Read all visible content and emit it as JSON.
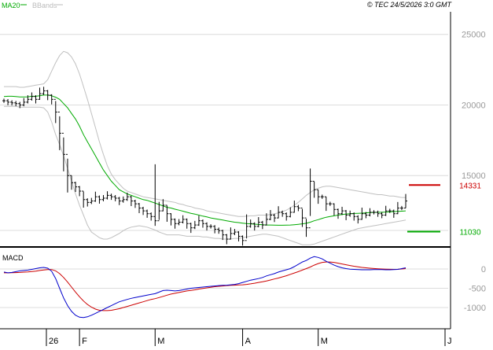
{
  "header": {
    "legend": [
      {
        "label": "MA20",
        "color": "#00aa00"
      },
      {
        "label": "BBands",
        "color": "#bbbbbb"
      }
    ],
    "copyright": "© TEC 24/5/2026 3:0 GMT"
  },
  "colors": {
    "price": "#000000",
    "ma20": "#00aa00",
    "bbands": "#c0c0c0",
    "grid": "#dcdcdc",
    "resistance": "#cc0000",
    "support": "#00aa00",
    "macd": "#0000cc",
    "signal": "#cc0000",
    "axis_text": "#999999",
    "frame": "#000000"
  },
  "price_panel": {
    "yticks": [
      {
        "label": "25000",
        "value": 25000
      },
      {
        "label": "20000",
        "value": 20000
      },
      {
        "label": "15000",
        "value": 15000
      }
    ],
    "ylim": [
      10000,
      26600
    ],
    "levels": [
      {
        "label": "14331",
        "value": 14331,
        "type": "resistance"
      },
      {
        "label": "11030",
        "value": 11030,
        "type": "support"
      }
    ]
  },
  "macd_panel": {
    "label": "MACD",
    "yticks": [
      {
        "label": "0",
        "value": 0
      },
      {
        "label": "-500",
        "value": -500
      },
      {
        "label": "-1000",
        "value": -1000
      }
    ],
    "ylim": [
      -1550,
      550
    ]
  },
  "x_axis": {
    "ticks": [
      {
        "label": "26",
        "index": 0
      },
      {
        "label": "F",
        "index": 19
      },
      {
        "label": "M",
        "index": 38
      },
      {
        "label": "A",
        "index": 60
      },
      {
        "label": "M",
        "index": 79
      },
      {
        "label": "J",
        "index": 101
      }
    ]
  },
  "chart_data": {
    "type": "candlestick",
    "index_count": 102,
    "closes": [
      20300,
      20200,
      20150,
      20100,
      20000,
      20200,
      20400,
      20600,
      20400,
      20800,
      21000,
      20700,
      20400,
      19500,
      18000,
      16500,
      15000,
      14500,
      14200,
      13900,
      13300,
      13100,
      13200,
      13500,
      13300,
      13400,
      13600,
      13500,
      13400,
      13200,
      13300,
      13500,
      13200,
      13000,
      12700,
      12500,
      12300,
      12100,
      11800,
      12500,
      12900,
      12300,
      11900,
      11600,
      11700,
      11900,
      11600,
      11300,
      11500,
      11800,
      11600,
      11400,
      11400,
      11200,
      11100,
      10800,
      10500,
      10900,
      11000,
      10700,
      10400,
      11400,
      11600,
      11400,
      11700,
      11500,
      11900,
      12200,
      12000,
      12400,
      12300,
      12100,
      12400,
      12800,
      12700,
      12000,
      11300,
      14600,
      14000,
      13500,
      13500,
      13000,
      13000,
      12600,
      12300,
      12500,
      12200,
      12300,
      12100,
      11900,
      12300,
      12200,
      12400,
      12400,
      12300,
      12200,
      12500,
      12500,
      12300,
      12700,
      12700,
      13200
    ],
    "ma20": [
      20600,
      20620,
      20620,
      20600,
      20570,
      20570,
      20580,
      20620,
      20620,
      20650,
      20700,
      20700,
      20650,
      20550,
      20400,
      20100,
      19800,
      19400,
      19000,
      18500,
      17900,
      17400,
      16900,
      16400,
      15900,
      15400,
      15000,
      14600,
      14300,
      14000,
      13850,
      13700,
      13600,
      13500,
      13400,
      13300,
      13250,
      13150,
      13050,
      12950,
      12850,
      12750,
      12700,
      12620,
      12550,
      12480,
      12400,
      12330,
      12270,
      12200,
      12130,
      12070,
      12000,
      11950,
      11900,
      11850,
      11800,
      11750,
      11700,
      11670,
      11630,
      11600,
      11580,
      11560,
      11540,
      11520,
      11500,
      11500,
      11490,
      11480,
      11480,
      11490,
      11500,
      11520,
      11550,
      11580,
      11620,
      11700,
      11800,
      11880,
      11970,
      12050,
      12100,
      12150,
      12200,
      12240,
      12280,
      12300,
      12320,
      12330,
      12340,
      12360,
      12380,
      12390,
      12400,
      12400,
      12420,
      12430,
      12450,
      12460,
      12480,
      12500
    ],
    "bb_upper": [
      21300,
      21300,
      21300,
      21300,
      21250,
      21250,
      21300,
      21350,
      21400,
      21450,
      21500,
      21800,
      22400,
      23000,
      23500,
      23800,
      23700,
      23400,
      22900,
      22200,
      21300,
      20400,
      19400,
      18400,
      17400,
      16500,
      15700,
      15100,
      14700,
      14400,
      14100,
      13900,
      13800,
      13700,
      13600,
      13500,
      13450,
      13400,
      13350,
      13300,
      13250,
      13200,
      13150,
      13100,
      13000,
      12950,
      12850,
      12800,
      12700,
      12650,
      12600,
      12500,
      12450,
      12400,
      12350,
      12300,
      12250,
      12200,
      12150,
      12100,
      12100,
      12120,
      12150,
      12150,
      12200,
      12200,
      12200,
      12250,
      12300,
      12350,
      12450,
      12550,
      12700,
      12900,
      13100,
      13350,
      13600,
      13800,
      14000,
      14100,
      14200,
      14250,
      14250,
      14200,
      14150,
      14100,
      14050,
      14000,
      13950,
      13900,
      13850,
      13800,
      13750,
      13700,
      13650,
      13650,
      13600,
      13550,
      13550,
      13500,
      13450,
      13450
    ],
    "bb_lower": [
      19900,
      19900,
      19900,
      19900,
      19850,
      19850,
      19850,
      19850,
      19850,
      19850,
      19800,
      19500,
      18800,
      17900,
      17200,
      16400,
      15500,
      14600,
      13700,
      12900,
      12200,
      11500,
      11000,
      10800,
      10600,
      10500,
      10500,
      10600,
      10750,
      10900,
      11100,
      11250,
      11350,
      11400,
      11450,
      11400,
      11350,
      11250,
      11150,
      11000,
      10900,
      10800,
      10800,
      10800,
      10800,
      10750,
      10700,
      10700,
      10700,
      10700,
      10650,
      10650,
      10600,
      10550,
      10550,
      10500,
      10500,
      10500,
      10550,
      10550,
      10600,
      10650,
      10700,
      10750,
      10800,
      10850,
      10850,
      10800,
      10750,
      10700,
      10600,
      10500,
      10400,
      10300,
      10200,
      10100,
      10100,
      10100,
      10150,
      10250,
      10350,
      10450,
      10550,
      10650,
      10750,
      10850,
      10950,
      11050,
      11150,
      11250,
      11300,
      11350,
      11400,
      11450,
      11500,
      11550,
      11600,
      11650,
      11700,
      11750,
      11800,
      11850
    ],
    "macd": [
      -80,
      -100,
      -90,
      -70,
      -50,
      -40,
      -30,
      -10,
      10,
      30,
      40,
      20,
      -60,
      -250,
      -500,
      -750,
      -950,
      -1100,
      -1200,
      -1250,
      -1260,
      -1240,
      -1200,
      -1150,
      -1100,
      -1050,
      -1000,
      -950,
      -900,
      -850,
      -820,
      -790,
      -760,
      -740,
      -720,
      -700,
      -680,
      -660,
      -640,
      -600,
      -560,
      -550,
      -560,
      -570,
      -560,
      -540,
      -520,
      -500,
      -490,
      -480,
      -470,
      -460,
      -450,
      -440,
      -430,
      -425,
      -420,
      -410,
      -400,
      -380,
      -350,
      -320,
      -290,
      -270,
      -250,
      -220,
      -180,
      -150,
      -120,
      -80,
      -50,
      -20,
      10,
      60,
      120,
      180,
      220,
      280,
      320,
      300,
      260,
      200,
      150,
      100,
      60,
      30,
      10,
      -5,
      -10,
      -15,
      -20,
      -20,
      -20,
      -15,
      -15,
      -15,
      -20,
      -20,
      -15,
      -10,
      10,
      30
    ],
    "signal": [
      -100,
      -100,
      -98,
      -95,
      -90,
      -82,
      -75,
      -65,
      -55,
      -40,
      -25,
      -15,
      -15,
      -50,
      -120,
      -220,
      -340,
      -470,
      -600,
      -720,
      -830,
      -920,
      -990,
      -1040,
      -1070,
      -1080,
      -1080,
      -1070,
      -1050,
      -1030,
      -1000,
      -970,
      -940,
      -910,
      -880,
      -850,
      -820,
      -790,
      -770,
      -740,
      -710,
      -680,
      -650,
      -630,
      -610,
      -590,
      -570,
      -555,
      -540,
      -520,
      -505,
      -490,
      -475,
      -460,
      -450,
      -440,
      -430,
      -425,
      -420,
      -415,
      -410,
      -400,
      -385,
      -370,
      -350,
      -330,
      -310,
      -285,
      -260,
      -235,
      -205,
      -175,
      -140,
      -105,
      -70,
      -30,
      10,
      50,
      100,
      140,
      170,
      180,
      180,
      170,
      150,
      130,
      110,
      90,
      70,
      55,
      40,
      30,
      20,
      12,
      5,
      0,
      -5,
      -8,
      -10,
      -8,
      0,
      10
    ],
    "series": [
      {
        "name": "MA20",
        "key": "ma20"
      },
      {
        "name": "BBands",
        "key": "bb_upper"
      },
      {
        "name": "BBands",
        "key": "bb_lower"
      }
    ]
  }
}
